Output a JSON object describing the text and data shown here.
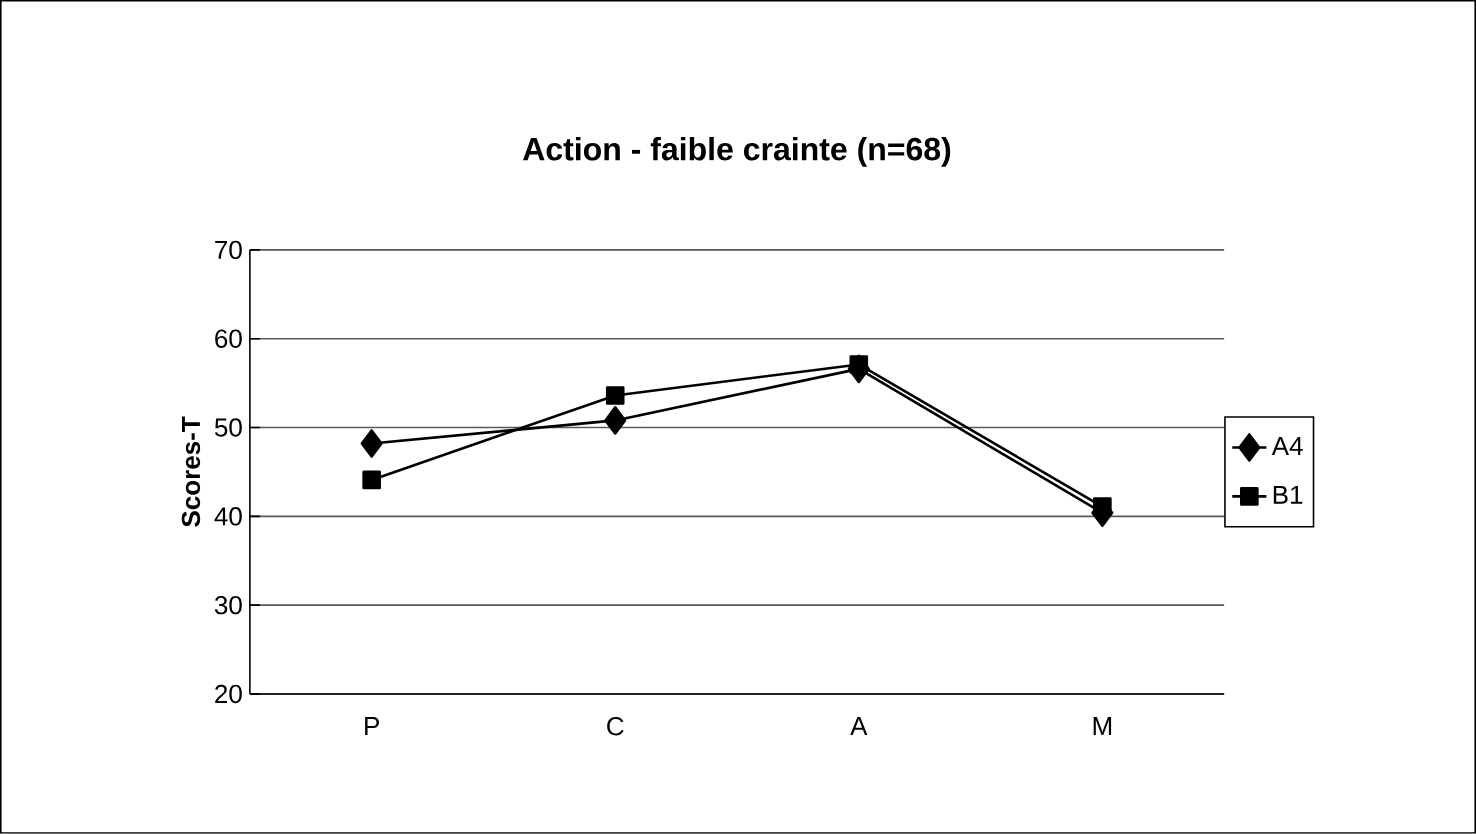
{
  "chart_data": {
    "type": "line",
    "title": "Action - faible crainte (n=68)",
    "ylabel": "Scores-T",
    "categories": [
      "P",
      "C",
      "A",
      "M"
    ],
    "series": [
      {
        "name": "A4",
        "color": "#000000",
        "marker": "diamond",
        "values": [
          48.2,
          50.8,
          56.6,
          40.4
        ]
      },
      {
        "name": "B1",
        "color": "#000000",
        "marker": "square",
        "values": [
          44.1,
          53.6,
          57.1,
          41.1
        ]
      }
    ],
    "ylim": [
      20,
      70
    ],
    "yticks": [
      20,
      30,
      40,
      50,
      60,
      70
    ],
    "grid": "y",
    "legend": "right",
    "line_style": "solid"
  }
}
